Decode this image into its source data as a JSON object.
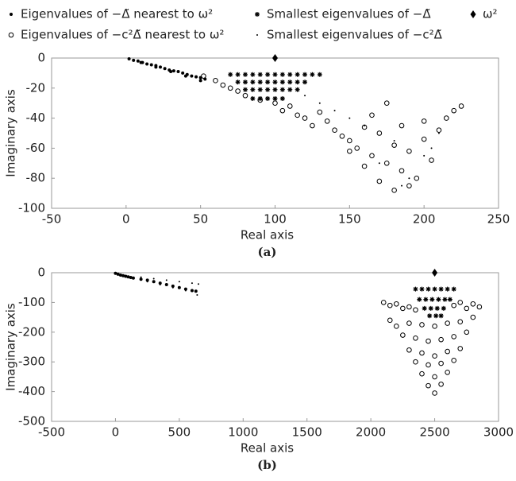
{
  "chart_data": [
    {
      "type": "scatter",
      "xlabel": "Real axis",
      "ylabel": "Imaginary axis",
      "caption": "(a)",
      "xlim": [
        -50,
        250
      ],
      "xticks": [
        -50,
        0,
        50,
        100,
        150,
        200,
        250
      ],
      "ylim": [
        -100,
        0
      ],
      "yticks": [
        0,
        -20,
        -40,
        -60,
        -80,
        -100
      ],
      "series": [
        {
          "name": "Eigenvalues of −Δ̃ nearest to ω²",
          "marker": "dot",
          "color": "#000",
          "x": [
            2,
            5,
            8,
            11,
            14,
            17,
            20,
            23,
            26,
            29,
            32,
            35,
            38,
            41,
            44,
            47,
            50,
            53,
            10,
            20,
            30,
            40,
            50
          ],
          "values": [
            -0.5,
            -1.5,
            -2,
            -3,
            -4,
            -4.5,
            -5,
            -6,
            -7,
            -8,
            -8.5,
            -9,
            -10,
            -11,
            -12,
            -12.5,
            -13,
            -14,
            -3,
            -6,
            -9,
            -12,
            -15
          ]
        },
        {
          "name": "Eigenvalues of −c²Δ̃ nearest to ω²",
          "marker": "circle",
          "color": "#000",
          "x": [
            52,
            60,
            65,
            70,
            75,
            80,
            90,
            100,
            105,
            110,
            115,
            120,
            125,
            130,
            135,
            140,
            145,
            150,
            155,
            160,
            165,
            170,
            175,
            180,
            185,
            190,
            195,
            200,
            205,
            210,
            215,
            220,
            225,
            150,
            160,
            170,
            180,
            190,
            200,
            175,
            185,
            165
          ],
          "values": [
            -12,
            -15,
            -18,
            -20,
            -22,
            -25,
            -28,
            -30,
            -35,
            -32,
            -38,
            -40,
            -45,
            -36,
            -42,
            -48,
            -52,
            -55,
            -60,
            -46,
            -65,
            -50,
            -70,
            -58,
            -75,
            -62,
            -80,
            -54,
            -68,
            -48,
            -40,
            -35,
            -32,
            -62,
            -72,
            -82,
            -88,
            -85,
            -42,
            -30,
            -45,
            -38
          ]
        },
        {
          "name": "Smallest eigenvalues of −Δ̃",
          "marker": "star",
          "color": "#000",
          "x": [
            70,
            75,
            80,
            85,
            90,
            95,
            100,
            105,
            110,
            115,
            120,
            125,
            130,
            75,
            80,
            85,
            90,
            95,
            100,
            105,
            110,
            115,
            120,
            80,
            85,
            90,
            95,
            100,
            105,
            110,
            115,
            85,
            90,
            95,
            100,
            105
          ],
          "values": [
            -11,
            -11,
            -11,
            -11,
            -11,
            -11,
            -11,
            -11,
            -11,
            -11,
            -11,
            -11,
            -11,
            -16,
            -16,
            -16,
            -16,
            -16,
            -16,
            -16,
            -16,
            -16,
            -16,
            -21,
            -21,
            -21,
            -21,
            -21,
            -21,
            -21,
            -21,
            -27,
            -27,
            -27,
            -27,
            -27
          ]
        },
        {
          "name": "Smallest eigenvalues of −c²Δ̃",
          "marker": "point",
          "color": "#000",
          "x": [
            120,
            140,
            160,
            180,
            200,
            210,
            190,
            170,
            150,
            130,
            185,
            205
          ],
          "values": [
            -25,
            -35,
            -45,
            -55,
            -65,
            -50,
            -80,
            -70,
            -40,
            -30,
            -85,
            -60
          ]
        },
        {
          "name": "ω²",
          "marker": "diamond",
          "color": "#000",
          "x": [
            100
          ],
          "values": [
            0
          ]
        }
      ]
    },
    {
      "type": "scatter",
      "xlabel": "Real axis",
      "ylabel": "Imaginary axis",
      "caption": "(b)",
      "xlim": [
        -500,
        3000
      ],
      "xticks": [
        -500,
        0,
        500,
        1000,
        1500,
        2000,
        2500,
        3000
      ],
      "ylim": [
        -500,
        0
      ],
      "yticks": [
        0,
        -100,
        -200,
        -300,
        -400,
        -500
      ],
      "series": [
        {
          "marker": "dot",
          "color": "#000",
          "x": [
            0,
            20,
            40,
            60,
            80,
            100,
            120,
            140,
            200,
            250,
            300,
            350,
            400,
            450,
            500,
            550,
            600,
            630
          ],
          "values": [
            -2,
            -5,
            -8,
            -10,
            -12,
            -14,
            -16,
            -18,
            -22,
            -25,
            -30,
            -35,
            -40,
            -45,
            -50,
            -55,
            -60,
            -62
          ]
        },
        {
          "marker": "circle",
          "color": "#000",
          "x": [
            2100,
            2150,
            2200,
            2250,
            2300,
            2350,
            2650,
            2700,
            2750,
            2800,
            2850,
            2150,
            2200,
            2300,
            2400,
            2500,
            2600,
            2700,
            2800,
            2250,
            2350,
            2450,
            2550,
            2650,
            2750,
            2300,
            2400,
            2500,
            2600,
            2700,
            2350,
            2450,
            2550,
            2650,
            2400,
            2500,
            2600,
            2450,
            2550,
            2500
          ],
          "values": [
            -100,
            -110,
            -105,
            -120,
            -115,
            -125,
            -110,
            -100,
            -120,
            -105,
            -115,
            -160,
            -180,
            -170,
            -175,
            -180,
            -170,
            -165,
            -150,
            -210,
            -220,
            -230,
            -225,
            -215,
            -200,
            -260,
            -270,
            -280,
            -265,
            -255,
            -300,
            -310,
            -305,
            -295,
            -340,
            -350,
            -335,
            -380,
            -375,
            -405
          ]
        },
        {
          "marker": "star",
          "color": "#000",
          "x": [
            2350,
            2400,
            2450,
            2500,
            2550,
            2600,
            2650,
            2380,
            2430,
            2480,
            2530,
            2580,
            2620,
            2420,
            2470,
            2520,
            2570,
            2460,
            2510,
            2550
          ],
          "values": [
            -55,
            -55,
            -55,
            -55,
            -55,
            -55,
            -55,
            -90,
            -90,
            -90,
            -90,
            -90,
            -90,
            -120,
            -120,
            -120,
            -120,
            -145,
            -145,
            -145
          ]
        },
        {
          "marker": "point",
          "color": "#000",
          "x": [
            200,
            300,
            400,
            500,
            600,
            650,
            250,
            350,
            450,
            550,
            640
          ],
          "values": [
            -15,
            -20,
            -25,
            -30,
            -35,
            -38,
            -30,
            -40,
            -50,
            -60,
            -75
          ]
        },
        {
          "marker": "diamond",
          "color": "#000",
          "x": [
            2500
          ],
          "values": [
            0
          ]
        }
      ]
    }
  ]
}
